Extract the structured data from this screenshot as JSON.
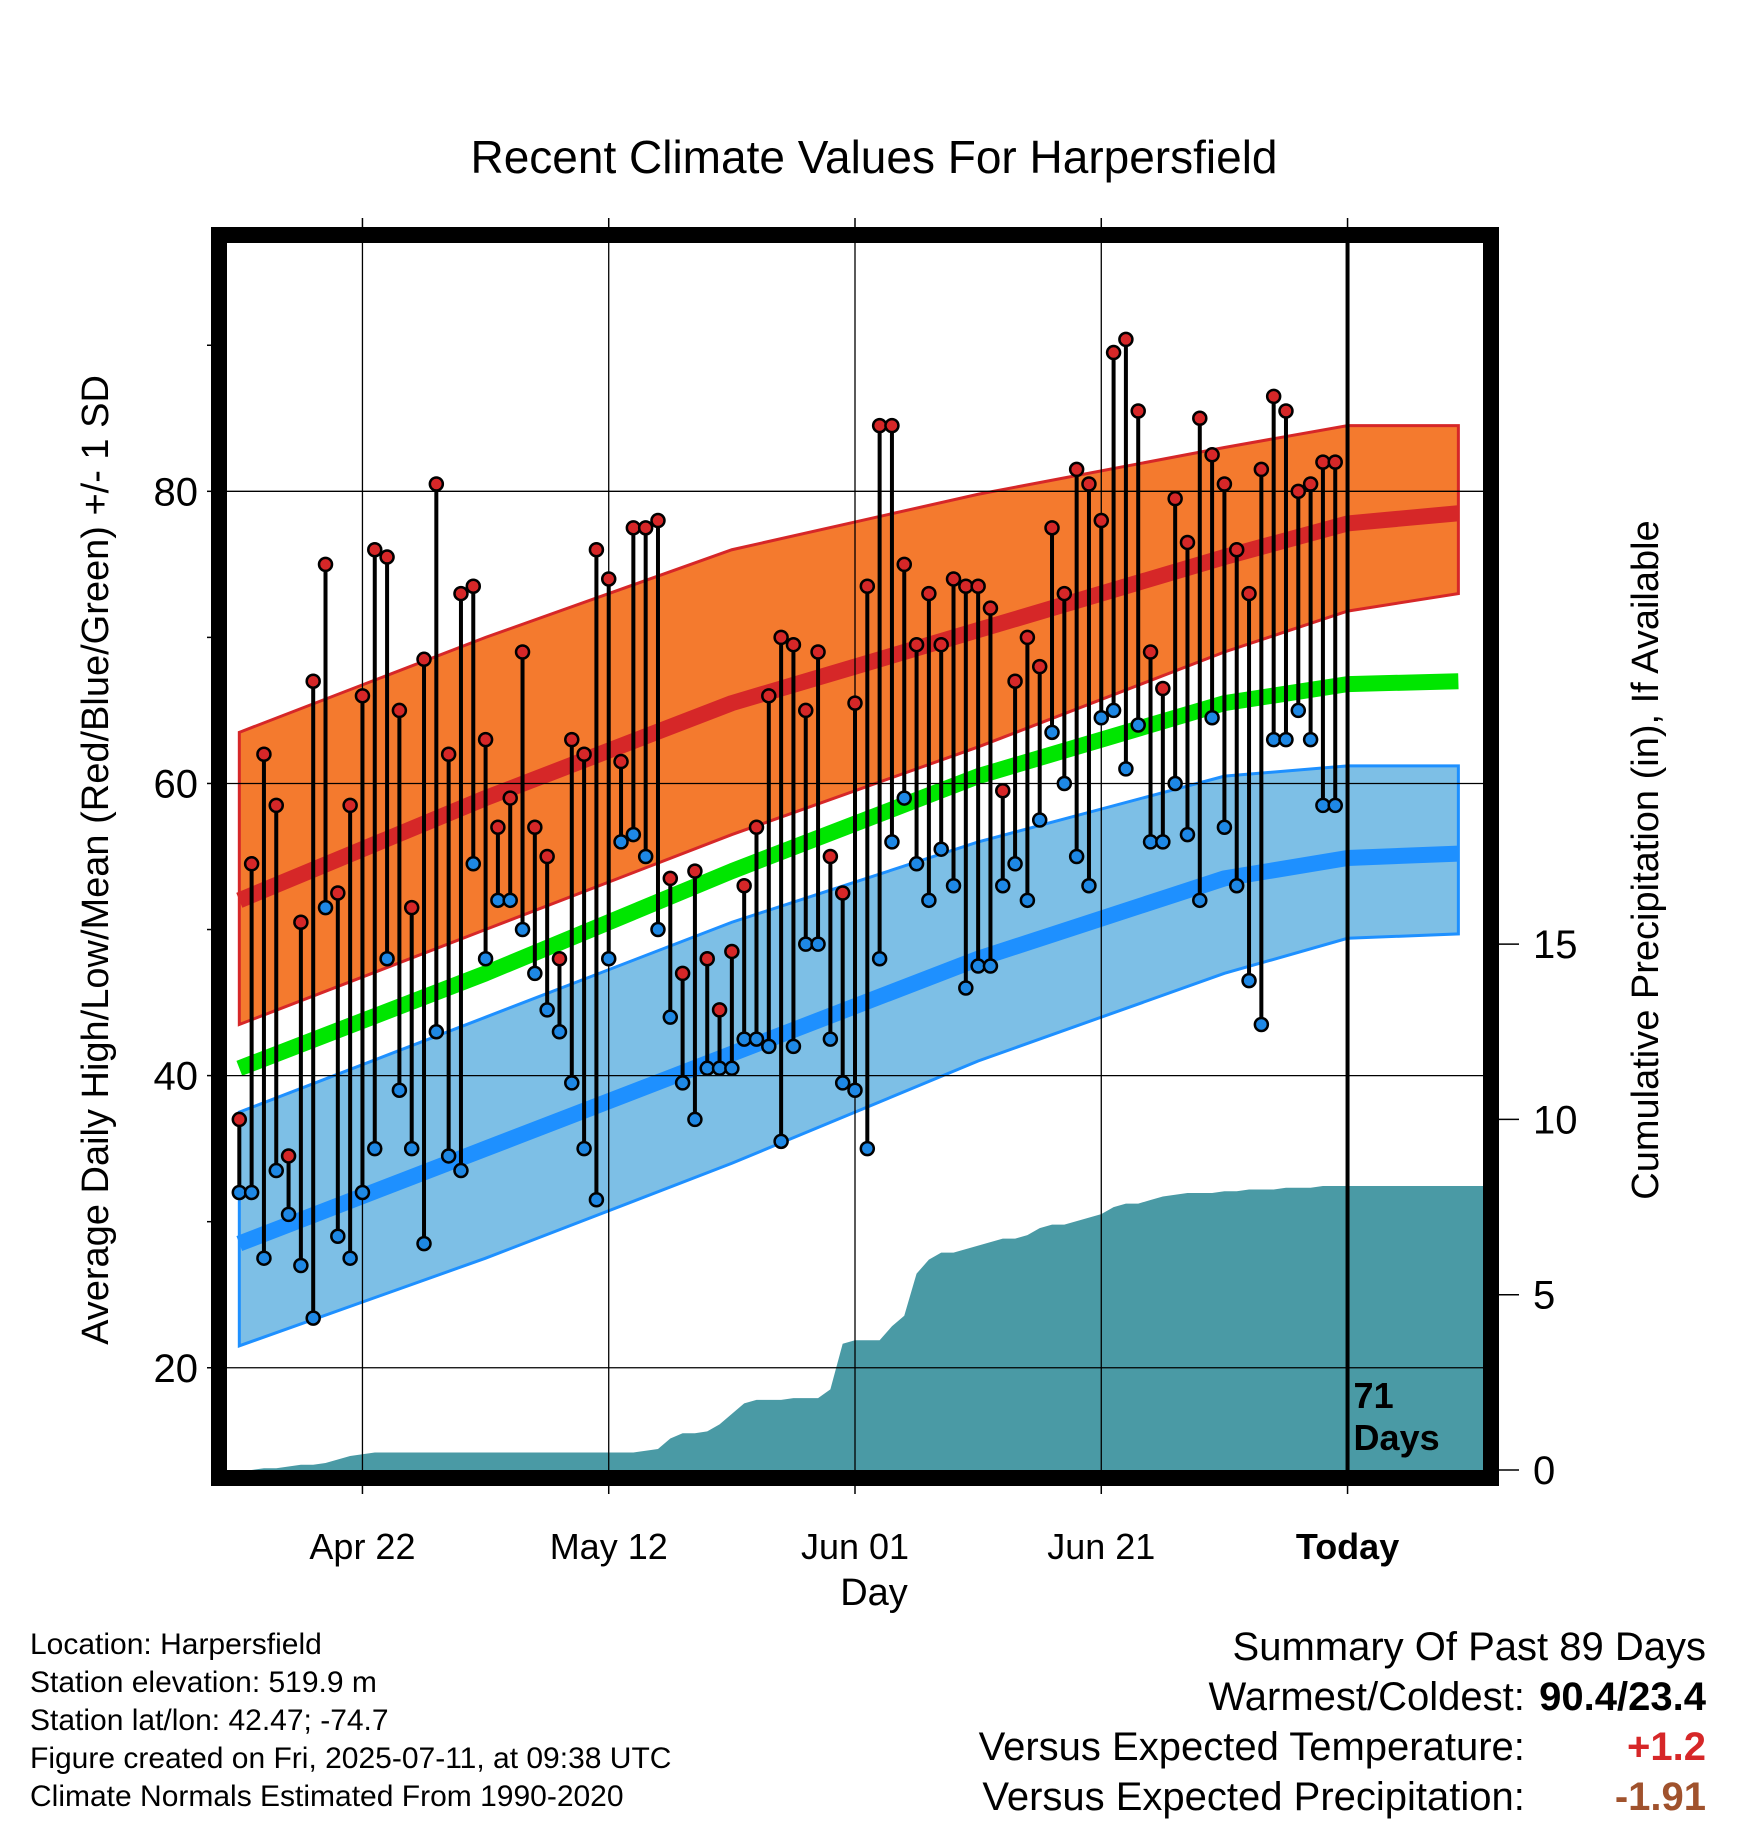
{
  "chart_data": {
    "type": "line",
    "title": "Recent Climate Values For Harpersfield",
    "xlabel": "Day",
    "ylabel": "Average Daily High/Low/Mean (Red/Blue/Green) +/- 1 SD",
    "y2label": "Cumulative Precipitation (in), If Available",
    "x_tick_labels": [
      "Apr 22",
      "May 12",
      "Jun 01",
      "Jun 21",
      "Today"
    ],
    "y_ticks": [
      "20",
      "40",
      "60",
      "80"
    ],
    "y2_ticks": [
      "0",
      "5",
      "10",
      "15"
    ],
    "ylim": [
      13,
      97
    ],
    "y2lim": [
      0,
      35
    ],
    "grid": true,
    "today_annotation": [
      "71",
      "Days"
    ],
    "colors": {
      "high_band": "#f47a2e",
      "high_mean": "#d62728",
      "low_band": "#7dbfe6",
      "low_mean": "#1e90ff",
      "mean_line": "#00e600",
      "precip": "#4a9aa5",
      "high_point": "#d62728",
      "low_point": "#1e88e5"
    },
    "normals_days_from_today": [
      -90,
      -70,
      -50,
      -30,
      -10,
      0,
      9
    ],
    "normal_high": [
      52.0,
      59.0,
      65.5,
      70.5,
      75.5,
      77.8,
      78.5
    ],
    "normal_high_upper": [
      63.5,
      70.0,
      76.0,
      79.8,
      83.0,
      84.5,
      84.5
    ],
    "normal_high_lower": [
      43.5,
      50.0,
      56.5,
      62.5,
      69.0,
      71.8,
      73.0
    ],
    "normal_mean": [
      40.5,
      47.0,
      54.0,
      60.5,
      65.5,
      66.8,
      67.0
    ],
    "normal_low": [
      28.5,
      35.0,
      41.5,
      48.0,
      53.5,
      54.9,
      55.2
    ],
    "normal_low_upper": [
      37.5,
      44.0,
      50.5,
      56.0,
      60.5,
      61.2,
      61.2
    ],
    "normal_low_lower": [
      21.5,
      27.5,
      34.0,
      41.0,
      47.0,
      49.4,
      49.7
    ],
    "daily_days_from_today": [
      -90,
      -89,
      -88,
      -87,
      -86,
      -85,
      -84,
      -83,
      -82,
      -81,
      -80,
      -79,
      -78,
      -77,
      -76,
      -75,
      -74,
      -73,
      -72,
      -71,
      -70,
      -69,
      -68,
      -67,
      -66,
      -65,
      -64,
      -63,
      -62,
      -61,
      -60,
      -59,
      -58,
      -57,
      -56,
      -55,
      -54,
      -53,
      -52,
      -51,
      -50,
      -49,
      -48,
      -47,
      -46,
      -45,
      -44,
      -43,
      -42,
      -41,
      -40,
      -39,
      -38,
      -37,
      -36,
      -35,
      -34,
      -33,
      -32,
      -31,
      -30,
      -29,
      -28,
      -27,
      -26,
      -25,
      -24,
      -23,
      -22,
      -21,
      -20,
      -19,
      -18,
      -17,
      -16,
      -15,
      -14,
      -13,
      -12,
      -11,
      -10,
      -9,
      -8,
      -7,
      -6,
      -5,
      -4,
      -3,
      -2,
      -1
    ],
    "daily_high": [
      37.0,
      54.5,
      62.0,
      58.5,
      34.5,
      50.5,
      67.0,
      75.0,
      52.5,
      58.5,
      66.0,
      76.0,
      75.5,
      65.0,
      51.5,
      68.5,
      80.5,
      62.0,
      73.0,
      73.5,
      63.0,
      57.0,
      59.0,
      69.0,
      57.0,
      55.0,
      48.0,
      63.0,
      62.0,
      76.0,
      74.0,
      61.5,
      77.5,
      77.5,
      78.0,
      53.5,
      47.0,
      54.0,
      48.0,
      44.5,
      48.5,
      53.0,
      57.0,
      66.0,
      70.0,
      69.5,
      65.0,
      69.0,
      55.0,
      52.5,
      65.5,
      73.5,
      84.5,
      84.5,
      75.0,
      69.5,
      73.0,
      69.5,
      74.0,
      73.5,
      73.5,
      72.0,
      59.5,
      67.0,
      70.0,
      68.0,
      77.5,
      73.0,
      81.5,
      80.5,
      78.0,
      89.5,
      90.4,
      85.5,
      69.0,
      66.5,
      79.5,
      76.5,
      85.0,
      82.5,
      80.5,
      76.0,
      73.0,
      81.5,
      86.5,
      85.5,
      80.0,
      80.5,
      82.0,
      82.0
    ],
    "daily_low": [
      32.0,
      32.0,
      27.5,
      33.5,
      30.5,
      27.0,
      23.4,
      51.5,
      29.0,
      27.5,
      32.0,
      35.0,
      48.0,
      39.0,
      35.0,
      28.5,
      43.0,
      34.5,
      33.5,
      54.5,
      48.0,
      52.0,
      52.0,
      50.0,
      47.0,
      44.5,
      43.0,
      39.5,
      35.0,
      31.5,
      48.0,
      56.0,
      56.5,
      55.0,
      50.0,
      44.0,
      39.5,
      37.0,
      40.5,
      40.5,
      40.5,
      42.5,
      42.5,
      42.0,
      35.5,
      42.0,
      49.0,
      49.0,
      42.5,
      39.5,
      39.0,
      35.0,
      48.0,
      56.0,
      59.0,
      54.5,
      52.0,
      55.5,
      53.0,
      46.0,
      47.5,
      47.5,
      53.0,
      54.5,
      52.0,
      57.5,
      63.5,
      60.0,
      55.0,
      53.0,
      64.5,
      65.0,
      61.0,
      64.0,
      56.0,
      56.0,
      60.0,
      56.5,
      52.0,
      64.5,
      57.0,
      53.0,
      46.5,
      43.5,
      63.0,
      63.0,
      65.0,
      63.0,
      58.5,
      58.5
    ],
    "precip_cumulative": [
      0.0,
      0.0,
      0.05,
      0.05,
      0.1,
      0.15,
      0.15,
      0.2,
      0.3,
      0.4,
      0.45,
      0.5,
      0.5,
      0.5,
      0.5,
      0.5,
      0.5,
      0.5,
      0.5,
      0.5,
      0.5,
      0.5,
      0.5,
      0.5,
      0.5,
      0.5,
      0.5,
      0.5,
      0.5,
      0.5,
      0.5,
      0.5,
      0.5,
      0.55,
      0.6,
      0.9,
      1.05,
      1.05,
      1.1,
      1.3,
      1.6,
      1.9,
      2.0,
      2.0,
      2.0,
      2.05,
      2.05,
      2.05,
      2.3,
      3.6,
      3.7,
      3.7,
      3.7,
      4.1,
      4.4,
      5.6,
      6.0,
      6.2,
      6.2,
      6.3,
      6.4,
      6.5,
      6.6,
      6.6,
      6.7,
      6.9,
      7.0,
      7.0,
      7.1,
      7.2,
      7.3,
      7.5,
      7.6,
      7.6,
      7.7,
      7.8,
      7.85,
      7.9,
      7.9,
      7.9,
      7.95,
      7.95,
      8.0,
      8.0,
      8.0,
      8.05,
      8.05,
      8.05,
      8.1,
      8.1
    ]
  },
  "info": {
    "location": "Location: Harpersfield",
    "elevation": "Station elevation: 519.9 m",
    "latlon": "Station lat/lon: 42.47; -74.7",
    "created": "Figure created on Fri, 2025-07-11, at 09:38 UTC",
    "normals": "Climate Normals Estimated From 1990-2020"
  },
  "summary": {
    "title": "Summary Of Past 89 Days",
    "extremes_label": "Warmest/Coldest:",
    "extremes_value": "90.4/23.4",
    "temp_label": "Versus Expected Temperature:",
    "temp_value": "+1.2",
    "temp_color": "#d62728",
    "precip_label": "Versus Expected Precipitation:",
    "precip_value": "-1.91",
    "precip_color": "#a0522d"
  }
}
